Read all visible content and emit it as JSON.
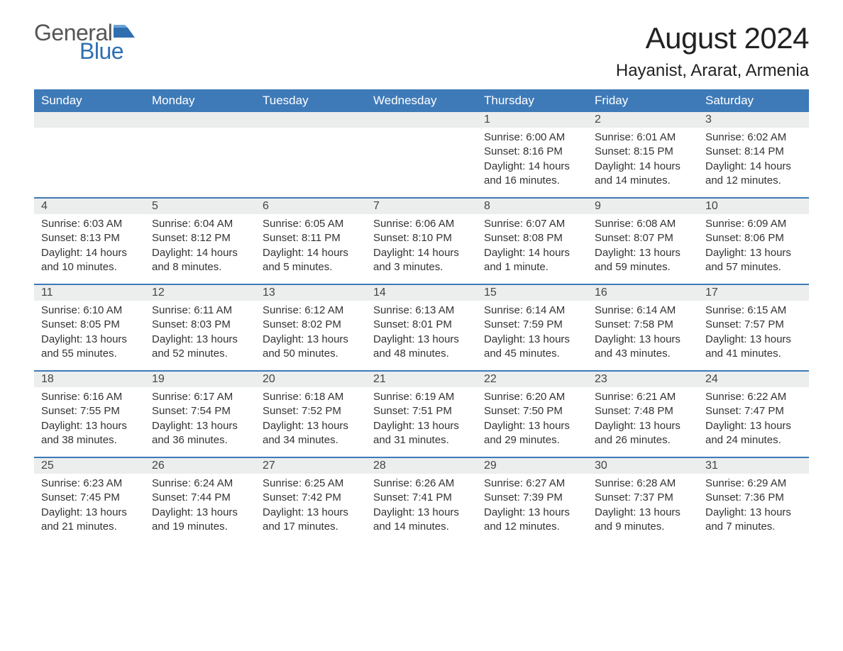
{
  "logo": {
    "text_general": "General",
    "text_blue": "Blue",
    "flag_color": "#2f6fb0"
  },
  "title": "August 2024",
  "location": "Hayanist, Ararat, Armenia",
  "colors": {
    "header_bg": "#3e7ab8",
    "header_text": "#ffffff",
    "daynum_bg": "#eceded",
    "body_text": "#333333",
    "week_border": "#3e7ab8",
    "page_bg": "#ffffff"
  },
  "weekdays": [
    "Sunday",
    "Monday",
    "Tuesday",
    "Wednesday",
    "Thursday",
    "Friday",
    "Saturday"
  ],
  "labels": {
    "sunrise": "Sunrise:",
    "sunset": "Sunset:",
    "daylight": "Daylight:"
  },
  "weeks": [
    [
      null,
      null,
      null,
      null,
      {
        "n": "1",
        "sunrise": "6:00 AM",
        "sunset": "8:16 PM",
        "daylight": "14 hours and 16 minutes."
      },
      {
        "n": "2",
        "sunrise": "6:01 AM",
        "sunset": "8:15 PM",
        "daylight": "14 hours and 14 minutes."
      },
      {
        "n": "3",
        "sunrise": "6:02 AM",
        "sunset": "8:14 PM",
        "daylight": "14 hours and 12 minutes."
      }
    ],
    [
      {
        "n": "4",
        "sunrise": "6:03 AM",
        "sunset": "8:13 PM",
        "daylight": "14 hours and 10 minutes."
      },
      {
        "n": "5",
        "sunrise": "6:04 AM",
        "sunset": "8:12 PM",
        "daylight": "14 hours and 8 minutes."
      },
      {
        "n": "6",
        "sunrise": "6:05 AM",
        "sunset": "8:11 PM",
        "daylight": "14 hours and 5 minutes."
      },
      {
        "n": "7",
        "sunrise": "6:06 AM",
        "sunset": "8:10 PM",
        "daylight": "14 hours and 3 minutes."
      },
      {
        "n": "8",
        "sunrise": "6:07 AM",
        "sunset": "8:08 PM",
        "daylight": "14 hours and 1 minute."
      },
      {
        "n": "9",
        "sunrise": "6:08 AM",
        "sunset": "8:07 PM",
        "daylight": "13 hours and 59 minutes."
      },
      {
        "n": "10",
        "sunrise": "6:09 AM",
        "sunset": "8:06 PM",
        "daylight": "13 hours and 57 minutes."
      }
    ],
    [
      {
        "n": "11",
        "sunrise": "6:10 AM",
        "sunset": "8:05 PM",
        "daylight": "13 hours and 55 minutes."
      },
      {
        "n": "12",
        "sunrise": "6:11 AM",
        "sunset": "8:03 PM",
        "daylight": "13 hours and 52 minutes."
      },
      {
        "n": "13",
        "sunrise": "6:12 AM",
        "sunset": "8:02 PM",
        "daylight": "13 hours and 50 minutes."
      },
      {
        "n": "14",
        "sunrise": "6:13 AM",
        "sunset": "8:01 PM",
        "daylight": "13 hours and 48 minutes."
      },
      {
        "n": "15",
        "sunrise": "6:14 AM",
        "sunset": "7:59 PM",
        "daylight": "13 hours and 45 minutes."
      },
      {
        "n": "16",
        "sunrise": "6:14 AM",
        "sunset": "7:58 PM",
        "daylight": "13 hours and 43 minutes."
      },
      {
        "n": "17",
        "sunrise": "6:15 AM",
        "sunset": "7:57 PM",
        "daylight": "13 hours and 41 minutes."
      }
    ],
    [
      {
        "n": "18",
        "sunrise": "6:16 AM",
        "sunset": "7:55 PM",
        "daylight": "13 hours and 38 minutes."
      },
      {
        "n": "19",
        "sunrise": "6:17 AM",
        "sunset": "7:54 PM",
        "daylight": "13 hours and 36 minutes."
      },
      {
        "n": "20",
        "sunrise": "6:18 AM",
        "sunset": "7:52 PM",
        "daylight": "13 hours and 34 minutes."
      },
      {
        "n": "21",
        "sunrise": "6:19 AM",
        "sunset": "7:51 PM",
        "daylight": "13 hours and 31 minutes."
      },
      {
        "n": "22",
        "sunrise": "6:20 AM",
        "sunset": "7:50 PM",
        "daylight": "13 hours and 29 minutes."
      },
      {
        "n": "23",
        "sunrise": "6:21 AM",
        "sunset": "7:48 PM",
        "daylight": "13 hours and 26 minutes."
      },
      {
        "n": "24",
        "sunrise": "6:22 AM",
        "sunset": "7:47 PM",
        "daylight": "13 hours and 24 minutes."
      }
    ],
    [
      {
        "n": "25",
        "sunrise": "6:23 AM",
        "sunset": "7:45 PM",
        "daylight": "13 hours and 21 minutes."
      },
      {
        "n": "26",
        "sunrise": "6:24 AM",
        "sunset": "7:44 PM",
        "daylight": "13 hours and 19 minutes."
      },
      {
        "n": "27",
        "sunrise": "6:25 AM",
        "sunset": "7:42 PM",
        "daylight": "13 hours and 17 minutes."
      },
      {
        "n": "28",
        "sunrise": "6:26 AM",
        "sunset": "7:41 PM",
        "daylight": "13 hours and 14 minutes."
      },
      {
        "n": "29",
        "sunrise": "6:27 AM",
        "sunset": "7:39 PM",
        "daylight": "13 hours and 12 minutes."
      },
      {
        "n": "30",
        "sunrise": "6:28 AM",
        "sunset": "7:37 PM",
        "daylight": "13 hours and 9 minutes."
      },
      {
        "n": "31",
        "sunrise": "6:29 AM",
        "sunset": "7:36 PM",
        "daylight": "13 hours and 7 minutes."
      }
    ]
  ]
}
